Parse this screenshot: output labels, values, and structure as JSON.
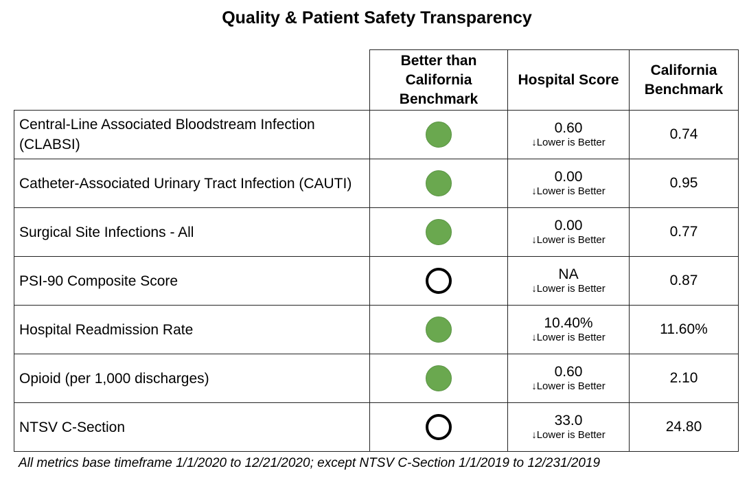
{
  "title": "Quality & Patient Safety Transparency",
  "headers": {
    "better_than": "Better than California Benchmark",
    "hospital_score": "Hospital Score",
    "california_benchmark": "California Benchmark"
  },
  "colors": {
    "better": "#6aa84f",
    "not_better": "#ffffff"
  },
  "rows": [
    {
      "metric": "Central-Line Associated Bloodstream Infection (CLABSI)",
      "better": true,
      "score": "0.60",
      "note": "↓Lower is Better",
      "benchmark": "0.74"
    },
    {
      "metric": "Catheter-Associated Urinary Tract Infection (CAUTI)",
      "better": true,
      "score": "0.00",
      "note": "↓Lower is Better",
      "benchmark": "0.95"
    },
    {
      "metric": "Surgical Site Infections - All",
      "better": true,
      "score": "0.00",
      "note": "↓Lower is Better",
      "benchmark": "0.77"
    },
    {
      "metric": "PSI-90 Composite Score",
      "better": false,
      "score": "NA",
      "note": "↓Lower is Better",
      "benchmark": "0.87"
    },
    {
      "metric": "Hospital Readmission Rate",
      "better": true,
      "score": "10.40%",
      "note": "↓Lower is Better",
      "benchmark": "11.60%"
    },
    {
      "metric": "Opioid (per 1,000 discharges)",
      "better": true,
      "score": "0.60",
      "note": "↓Lower is Better",
      "benchmark": "2.10"
    },
    {
      "metric": "NTSV C-Section",
      "better": false,
      "score": "33.0",
      "note": "↓Lower is Better",
      "benchmark": "24.80"
    }
  ],
  "footnote": "All metrics base timeframe 1/1/2020 to 12/21/2020; except NTSV C-Section 1/1/2019 to 12/231/2019"
}
